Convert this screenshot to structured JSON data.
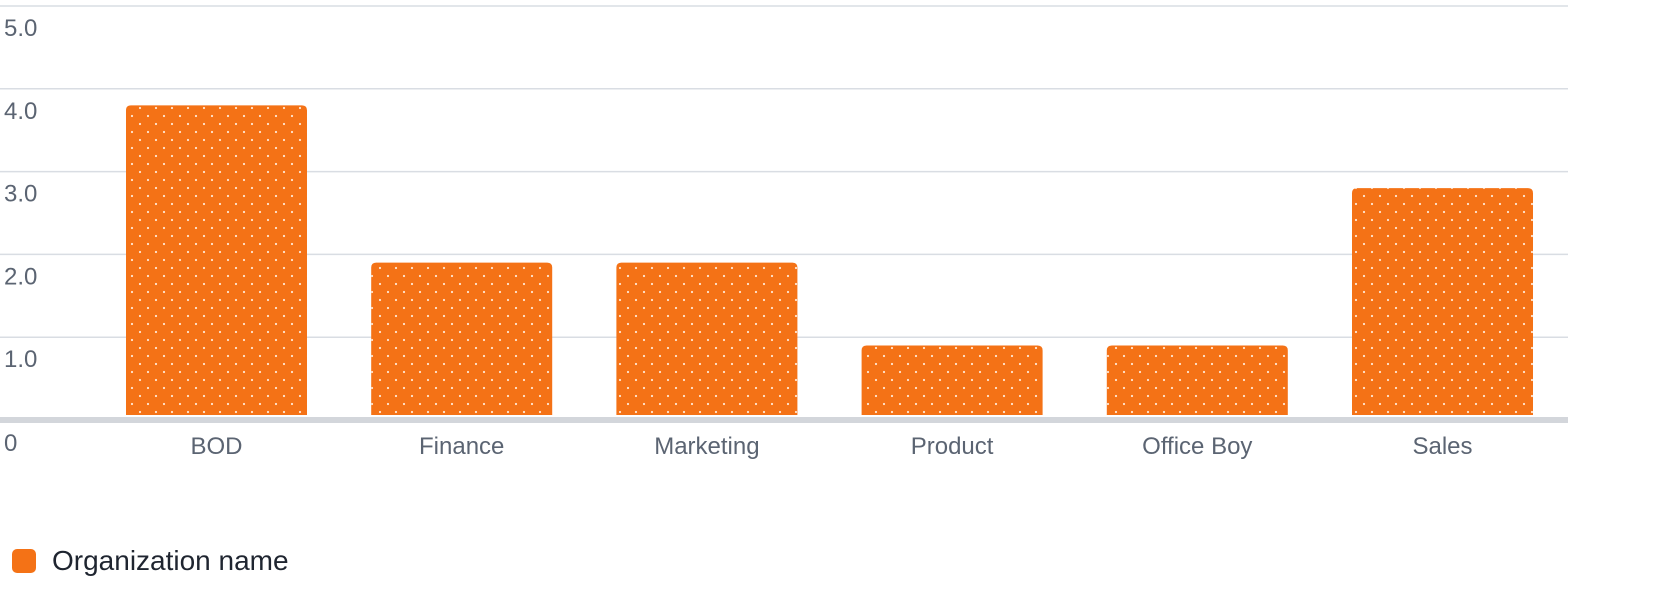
{
  "chart_data": {
    "type": "bar",
    "categories": [
      "BOD",
      "Finance",
      "Marketing",
      "Product",
      "Office Boy",
      "Sales"
    ],
    "series": [
      {
        "name": "Organization name",
        "values": [
          3.8,
          1.9,
          1.9,
          0.9,
          0.9,
          2.8
        ],
        "color": "#f47216"
      }
    ],
    "y_ticks": [
      "0",
      "1.0",
      "2.0",
      "3.0",
      "4.0",
      "5.0"
    ],
    "ylim": [
      0,
      5
    ],
    "grid": true,
    "legend_position": "bottom-left",
    "colors": {
      "bar": "#f47216",
      "grid": "#d9dde3",
      "axis": "#d3d6db",
      "tick_text": "#5b6472",
      "legend_text": "#1f2530"
    }
  }
}
